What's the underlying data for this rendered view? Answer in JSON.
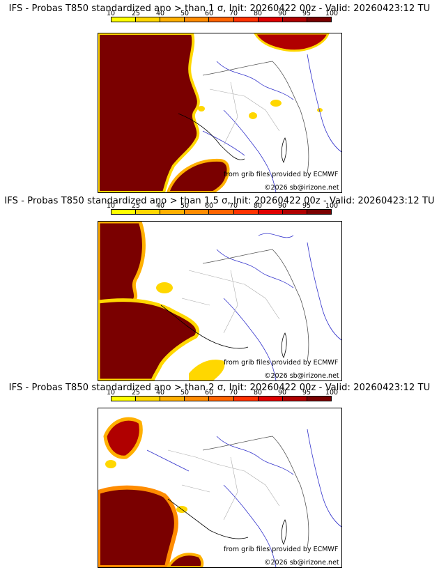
{
  "panels": [
    {
      "title": "IFS - Probas T850  standardized ano > than 1 σ, Init: 20260422 00z - Valid: 20260423:12 TU",
      "sigma": "1"
    },
    {
      "title": "IFS - Probas T850  standardized ano > than 1.5 σ, Init: 20260422 00z - Valid: 20260423:12 TU",
      "sigma": "1.5"
    },
    {
      "title": "IFS - Probas T850  standardized ano > than 2 σ, Init: 20260422 00z - Valid: 20260423:12 TU",
      "sigma": "2"
    }
  ],
  "colorbar": {
    "ticks": [
      "10",
      "25",
      "40",
      "50",
      "60",
      "70",
      "80",
      "90",
      "95",
      "100"
    ],
    "colors": [
      "#ffff00",
      "#ffd700",
      "#ffb000",
      "#ff8c00",
      "#ff6400",
      "#ff3200",
      "#e00000",
      "#b00000",
      "#7a0000"
    ]
  },
  "credits": {
    "source": "from grib files provided by ECMWF",
    "copyright": "©2026 sb@irizone.net"
  }
}
